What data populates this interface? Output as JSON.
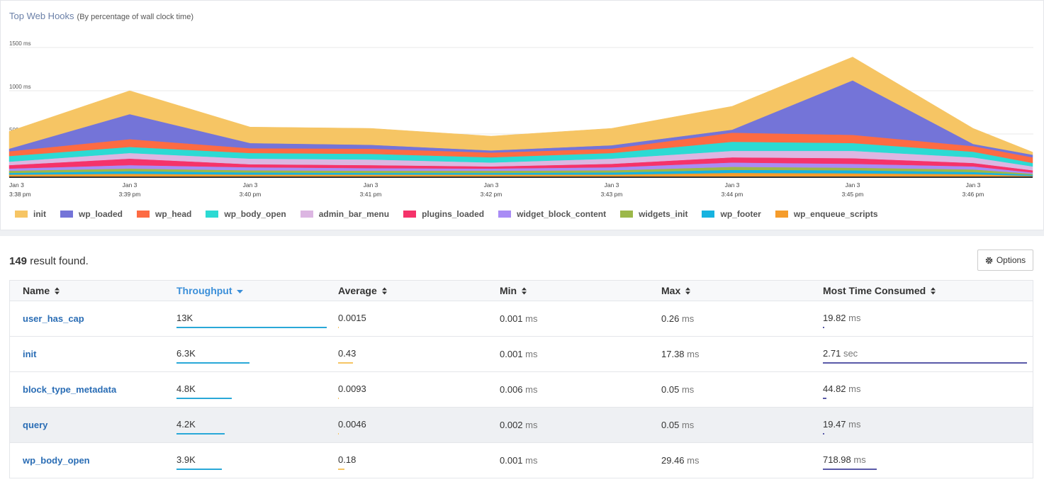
{
  "chart_data": {
    "type": "area",
    "stacked": true,
    "title": "Top Web Hooks",
    "subtitle": "(By percentage of wall clock time)",
    "categories": [
      [
        "Jan 3",
        "3:38 pm"
      ],
      [
        "Jan 3",
        "3:39 pm"
      ],
      [
        "Jan 3",
        "3:40 pm"
      ],
      [
        "Jan 3",
        "3:41 pm"
      ],
      [
        "Jan 3",
        "3:42 pm"
      ],
      [
        "Jan 3",
        "3:43 pm"
      ],
      [
        "Jan 3",
        "3:44 pm"
      ],
      [
        "Jan 3",
        "3:45 pm"
      ],
      [
        "Jan 3",
        "3:46 pm"
      ],
      null
    ],
    "ylim": [
      0,
      1500
    ],
    "yticks": [
      {
        "value": 500,
        "label": "500 ms"
      },
      {
        "value": 1000,
        "label": "1000 ms"
      },
      {
        "value": 1500,
        "label": "1500 ms"
      }
    ],
    "grid": true,
    "legend": "bottom",
    "series": [
      {
        "name": "init",
        "color": "#f6c564",
        "values": [
          200,
          270,
          185,
          190,
          165,
          195,
          270,
          270,
          180,
          30
        ]
      },
      {
        "name": "wp_loaded",
        "color": "#7474d8",
        "values": [
          30,
          290,
          60,
          45,
          25,
          40,
          35,
          630,
          25,
          30
        ]
      },
      {
        "name": "wp_head",
        "color": "#fd6b43",
        "values": [
          55,
          90,
          55,
          60,
          55,
          50,
          105,
          95,
          65,
          65
        ]
      },
      {
        "name": "wp_body_open",
        "color": "#2cdad3",
        "values": [
          65,
          70,
          65,
          65,
          60,
          65,
          105,
          90,
          65,
          40
        ]
      },
      {
        "name": "admin_bar_menu",
        "color": "#dcb6e2",
        "values": [
          40,
          65,
          65,
          65,
          45,
          60,
          75,
          85,
          65,
          45
        ]
      },
      {
        "name": "plugins_loaded",
        "color": "#f5336a",
        "values": [
          40,
          75,
          35,
          35,
          25,
          40,
          60,
          65,
          40,
          25
        ]
      },
      {
        "name": "widget_block_content",
        "color": "#a98cf5",
        "values": [
          25,
          40,
          35,
          30,
          25,
          35,
          50,
          45,
          35,
          15
        ]
      },
      {
        "name": "widgets_init",
        "color": "#9cb84a",
        "values": [
          25,
          30,
          25,
          25,
          25,
          25,
          35,
          30,
          30,
          12
        ]
      },
      {
        "name": "wp_footer",
        "color": "#16b3e0",
        "values": [
          20,
          30,
          25,
          20,
          20,
          25,
          35,
          35,
          25,
          13
        ]
      },
      {
        "name": "wp_enqueue_scripts",
        "color": "#f59c2b",
        "values": [
          30,
          40,
          30,
          30,
          30,
          30,
          50,
          45,
          35,
          15
        ]
      }
    ]
  },
  "results": {
    "count": 149,
    "label": "result found."
  },
  "options_button": "Options",
  "table": {
    "columns": [
      "Name",
      "Throughput",
      "Average",
      "Min",
      "Max",
      "Most Time Consumed"
    ],
    "sorted_column": 1,
    "rows": [
      {
        "name": "user_has_cap",
        "throughput": "13K",
        "average": 0.0015,
        "min": 0.001,
        "min_unit": "ms",
        "max": 0.26,
        "max_unit": "ms",
        "most_time": 19.82,
        "most_time_unit": "ms"
      },
      {
        "name": "init",
        "throughput": "6.3K",
        "average": 0.43,
        "min": 0.001,
        "min_unit": "ms",
        "max": 17.38,
        "max_unit": "ms",
        "most_time": 2.71,
        "most_time_unit": "sec"
      },
      {
        "name": "block_type_metadata",
        "throughput": "4.8K",
        "average": 0.0093,
        "min": 0.006,
        "min_unit": "ms",
        "max": 0.05,
        "max_unit": "ms",
        "most_time": 44.82,
        "most_time_unit": "ms"
      },
      {
        "name": "query",
        "throughput": "4.2K",
        "average": 0.0046,
        "min": 0.002,
        "min_unit": "ms",
        "max": 0.05,
        "max_unit": "ms",
        "most_time": 19.47,
        "most_time_unit": "ms"
      },
      {
        "name": "wp_body_open",
        "throughput": "3.9K",
        "average": 0.18,
        "min": 0.001,
        "min_unit": "ms",
        "max": 29.46,
        "max_unit": "ms",
        "most_time": 718.98,
        "most_time_unit": "ms"
      }
    ]
  }
}
